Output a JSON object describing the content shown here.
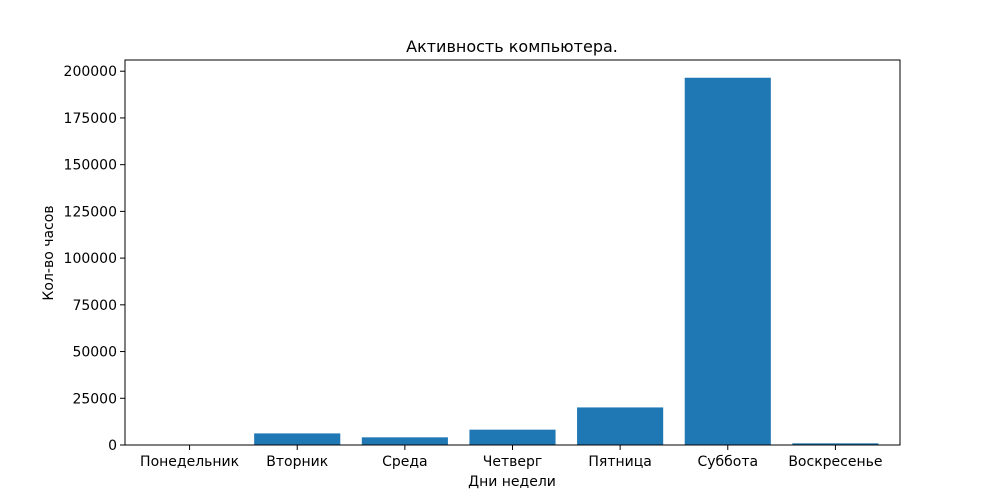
{
  "chart_data": {
    "type": "bar",
    "title": "Активность компьютера.",
    "xlabel": "Дни недели",
    "ylabel": "Кол-во часов",
    "categories": [
      "Понедельник",
      "Вторник",
      "Среда",
      "Четверг",
      "Пятница",
      "Суббота",
      "Воскресенье"
    ],
    "values": [
      0,
      6200,
      4100,
      8200,
      20100,
      196500,
      900
    ],
    "ylim": [
      0,
      206000
    ],
    "yticks": [
      0,
      25000,
      50000,
      75000,
      100000,
      125000,
      150000,
      175000,
      200000
    ],
    "bar_color": "#1f77b4",
    "grid": false,
    "legend": false
  }
}
